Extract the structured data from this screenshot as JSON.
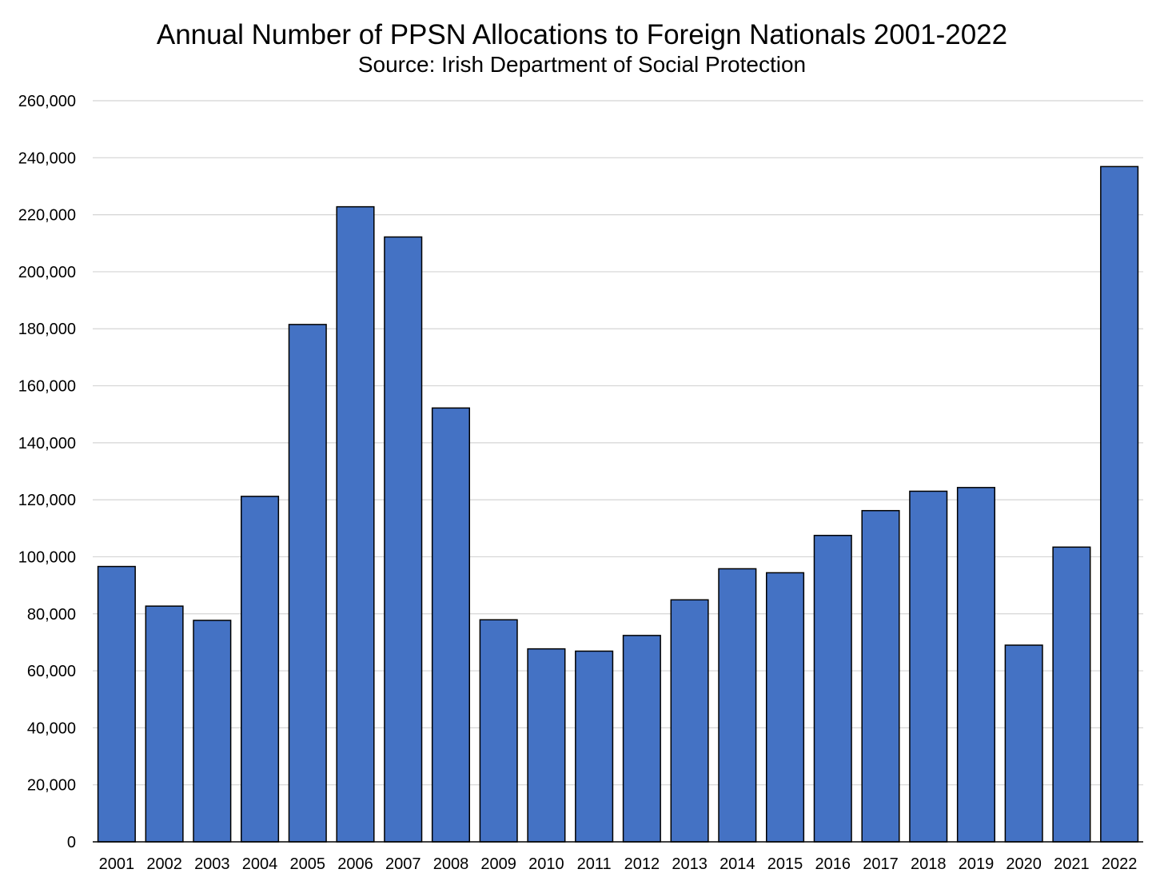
{
  "chart_data": {
    "type": "bar",
    "title": "Annual Number of PPSN Allocations to Foreign Nationals 2001-2022",
    "subtitle": "Source: Irish Department of Social Protection",
    "xlabel": "",
    "ylabel": "",
    "ylim": [
      0,
      260000
    ],
    "yticks": [
      0,
      20000,
      40000,
      60000,
      80000,
      100000,
      120000,
      140000,
      160000,
      180000,
      200000,
      220000,
      240000,
      260000
    ],
    "ytick_labels": [
      "0",
      "20,000",
      "40,000",
      "60,000",
      "80,000",
      "100,000",
      "120,000",
      "140,000",
      "160,000",
      "180,000",
      "200,000",
      "220,000",
      "240,000",
      "260,000"
    ],
    "grid": true,
    "legend": "none",
    "bar_color": "#4472C4",
    "categories": [
      "2001",
      "2002",
      "2003",
      "2004",
      "2005",
      "2006",
      "2007",
      "2008",
      "2009",
      "2010",
      "2011",
      "2012",
      "2013",
      "2014",
      "2015",
      "2016",
      "2017",
      "2018",
      "2019",
      "2020",
      "2021",
      "2022"
    ],
    "values": [
      96600,
      82700,
      77700,
      121200,
      181500,
      222800,
      212200,
      152200,
      77900,
      67700,
      66900,
      72400,
      84900,
      95800,
      94400,
      107500,
      116200,
      123000,
      124300,
      69000,
      103400,
      236900
    ]
  }
}
